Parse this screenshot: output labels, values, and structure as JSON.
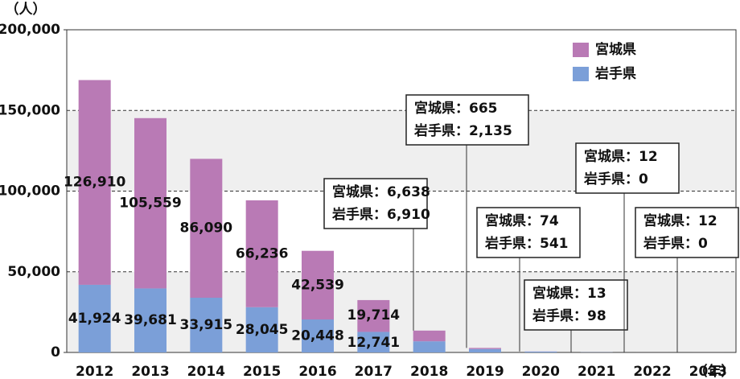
{
  "chart_data": {
    "type": "stacked_bar",
    "y_unit": "（人）",
    "x_unit": "（年）",
    "categories": [
      "2012",
      "2013",
      "2014",
      "2015",
      "2016",
      "2017",
      "2018",
      "2019",
      "2020",
      "2021",
      "2022",
      "2023"
    ],
    "series": [
      {
        "name": "宮城県",
        "color": "#b97ab5",
        "values": [
          126910,
          105559,
          86090,
          66236,
          42539,
          19714,
          6638,
          665,
          74,
          13,
          12,
          12
        ],
        "value_labels": [
          "126,910",
          "105,559",
          "86,090",
          "66,236",
          "42,539",
          "19,714",
          "6,638",
          "665",
          "74",
          "13",
          "12",
          "12"
        ]
      },
      {
        "name": "岩手県",
        "color": "#7b9fd8",
        "values": [
          41924,
          39681,
          33915,
          28045,
          20448,
          12741,
          6910,
          2135,
          541,
          98,
          0,
          0
        ],
        "value_labels": [
          "41,924",
          "39,681",
          "33,915",
          "28,045",
          "20,448",
          "12,741",
          "6,910",
          "2,135",
          "541",
          "98",
          "0",
          "0"
        ]
      }
    ],
    "label_separator": "：",
    "ylim": [
      0,
      200000
    ],
    "yticks": [
      0,
      {
        "value": 50000,
        "label": "50,000"
      },
      {
        "value": 100000,
        "label": "100,000"
      },
      {
        "value": 150000,
        "label": "150,000"
      },
      {
        "value": 200000,
        "label": "200,000"
      }
    ],
    "grid": true,
    "legend": "top-right"
  }
}
